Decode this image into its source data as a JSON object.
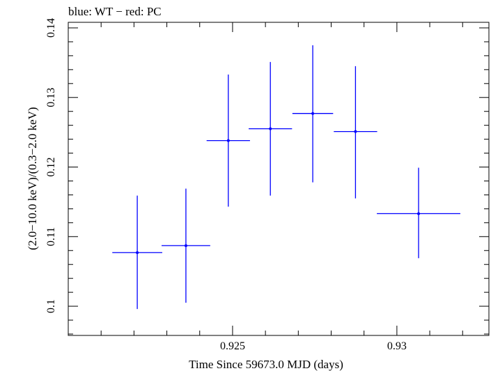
{
  "chart_data": {
    "type": "scatter",
    "title": "blue: WT − red: PC",
    "xlabel": "Time Since 59673.0 MJD (days)",
    "ylabel": "(2.0−10.0 keV)/(0.3−2.0 keV)",
    "xlim": [
      0.92,
      0.9328
    ],
    "ylim": [
      0.0958,
      0.1408
    ],
    "x_ticks": [
      0.925,
      0.93
    ],
    "x_tick_labels": [
      "0.925",
      "0.93"
    ],
    "y_ticks": [
      0.1,
      0.11,
      0.12,
      0.13,
      0.14
    ],
    "y_tick_labels": [
      "0.1",
      "0.11",
      "0.12",
      "0.13",
      "0.14"
    ],
    "grid": false,
    "series": [
      {
        "name": "WT",
        "color": "#0000ff",
        "points": [
          {
            "x": 0.9221,
            "x_err": 0.00076,
            "y": 0.1077,
            "y_err_low": 0.0081,
            "y_err_high": 0.0082
          },
          {
            "x": 0.92358,
            "x_err": 0.00074,
            "y": 0.1087,
            "y_err_low": 0.0082,
            "y_err_high": 0.0082
          },
          {
            "x": 0.92487,
            "x_err": 0.00066,
            "y": 0.1238,
            "y_err_low": 0.0095,
            "y_err_high": 0.0095
          },
          {
            "x": 0.92615,
            "x_err": 0.00066,
            "y": 0.1255,
            "y_err_low": 0.0096,
            "y_err_high": 0.0096
          },
          {
            "x": 0.92744,
            "x_err": 0.00062,
            "y": 0.1277,
            "y_err_low": 0.0099,
            "y_err_high": 0.0098
          },
          {
            "x": 0.92874,
            "x_err": 0.00066,
            "y": 0.1251,
            "y_err_low": 0.0096,
            "y_err_high": 0.0094
          },
          {
            "x": 0.93066,
            "x_err": 0.00127,
            "y": 0.1133,
            "y_err_low": 0.0064,
            "y_err_high": 0.0066
          }
        ]
      }
    ]
  }
}
